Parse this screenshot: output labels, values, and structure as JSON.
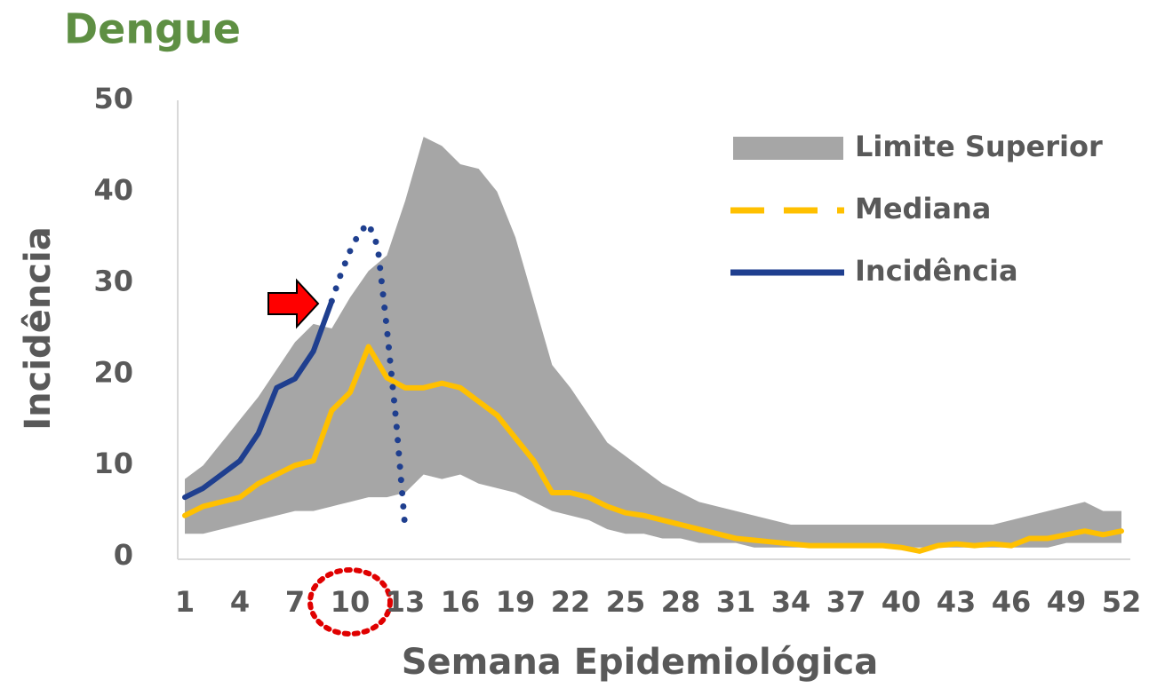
{
  "chart_data": {
    "type": "line",
    "title": "Dengue",
    "x_label": "Semana Epidemiológica",
    "y_label": "Incidência",
    "x": [
      1,
      2,
      3,
      4,
      5,
      6,
      7,
      8,
      9,
      10,
      11,
      12,
      13,
      14,
      15,
      16,
      17,
      18,
      19,
      20,
      21,
      22,
      23,
      24,
      25,
      26,
      27,
      28,
      29,
      30,
      31,
      32,
      33,
      34,
      35,
      36,
      37,
      38,
      39,
      40,
      41,
      42,
      43,
      44,
      45,
      46,
      47,
      48,
      49,
      50,
      51,
      52
    ],
    "xlim": [
      1,
      52
    ],
    "xticks": [
      1,
      4,
      7,
      10,
      13,
      16,
      19,
      22,
      25,
      28,
      31,
      34,
      37,
      40,
      43,
      46,
      49,
      52
    ],
    "ylim": [
      0,
      50
    ],
    "yticks": [
      0,
      10,
      20,
      30,
      40,
      50
    ],
    "series": [
      {
        "name": "Limite Superior",
        "kind": "band",
        "color": "#a6a6a6",
        "values": [
          8.5,
          10,
          12.5,
          15,
          17.5,
          20.5,
          23.5,
          25.5,
          25,
          28.4,
          31.3,
          33,
          39,
          46,
          45,
          43,
          42.5,
          40,
          35,
          28,
          21,
          18.5,
          15.5,
          12.5,
          11,
          9.5,
          8,
          7,
          6,
          5.5,
          5,
          4.5,
          4,
          3.5,
          3.5,
          3.5,
          3.5,
          3.5,
          3.5,
          3.5,
          3.5,
          3.5,
          3.5,
          3.5,
          3.5,
          4,
          4.5,
          5,
          5.5,
          6,
          5,
          5
        ],
        "lower": [
          2.5,
          2.5,
          3,
          3.5,
          4,
          4.5,
          5,
          5,
          5.5,
          6,
          6.5,
          6.5,
          7,
          9,
          8.5,
          9,
          8,
          7.5,
          7,
          6,
          5,
          4.5,
          4,
          3,
          2.5,
          2.5,
          2,
          2,
          1.5,
          1.5,
          1.5,
          1,
          1,
          1,
          1,
          1,
          1,
          1,
          1,
          1,
          1,
          1,
          1,
          1,
          1,
          1,
          1,
          1,
          1.5,
          1.5,
          1.5,
          1.5
        ]
      },
      {
        "name": "Mediana",
        "kind": "line",
        "dash": "dashed",
        "color": "#ffc000",
        "values": [
          4.5,
          5.5,
          6,
          6.5,
          8,
          9,
          10,
          10.5,
          16,
          18,
          23,
          19.6,
          18.5,
          18.5,
          19,
          18.5,
          17,
          15.5,
          13,
          10.5,
          7,
          7,
          6.5,
          5.5,
          4.8,
          4.5,
          4,
          3.5,
          3,
          2.5,
          2,
          1.8,
          1.6,
          1.4,
          1.2,
          1.2,
          1.2,
          1.2,
          1.2,
          1,
          0.6,
          1.2,
          1.4,
          1.2,
          1.4,
          1.2,
          2,
          2,
          2.4,
          2.8,
          2.4,
          2.8
        ]
      },
      {
        "name": "Incidência",
        "kind": "line",
        "color": "#1f3f8f",
        "values": [
          6.5,
          7.5,
          9,
          10.5,
          13.5,
          18.5,
          19.5,
          22.5,
          28,
          null,
          null,
          null,
          null,
          null,
          null,
          null,
          null,
          null,
          null,
          null,
          null,
          null,
          null,
          null,
          null,
          null,
          null,
          null,
          null,
          null,
          null,
          null,
          null,
          null,
          null,
          null,
          null,
          null,
          null,
          null,
          null,
          null,
          null,
          null,
          null,
          null,
          null,
          null,
          null,
          null,
          null,
          null
        ]
      },
      {
        "kind": "line",
        "dash": "dotted",
        "color": "#1f3f8f",
        "x": [
          9,
          9.5,
          10,
          10.5,
          11,
          11.5,
          12,
          12.5,
          13
        ],
        "values": [
          28,
          31,
          33.5,
          35.5,
          36.5,
          34,
          25,
          15,
          3
        ]
      }
    ]
  }
}
